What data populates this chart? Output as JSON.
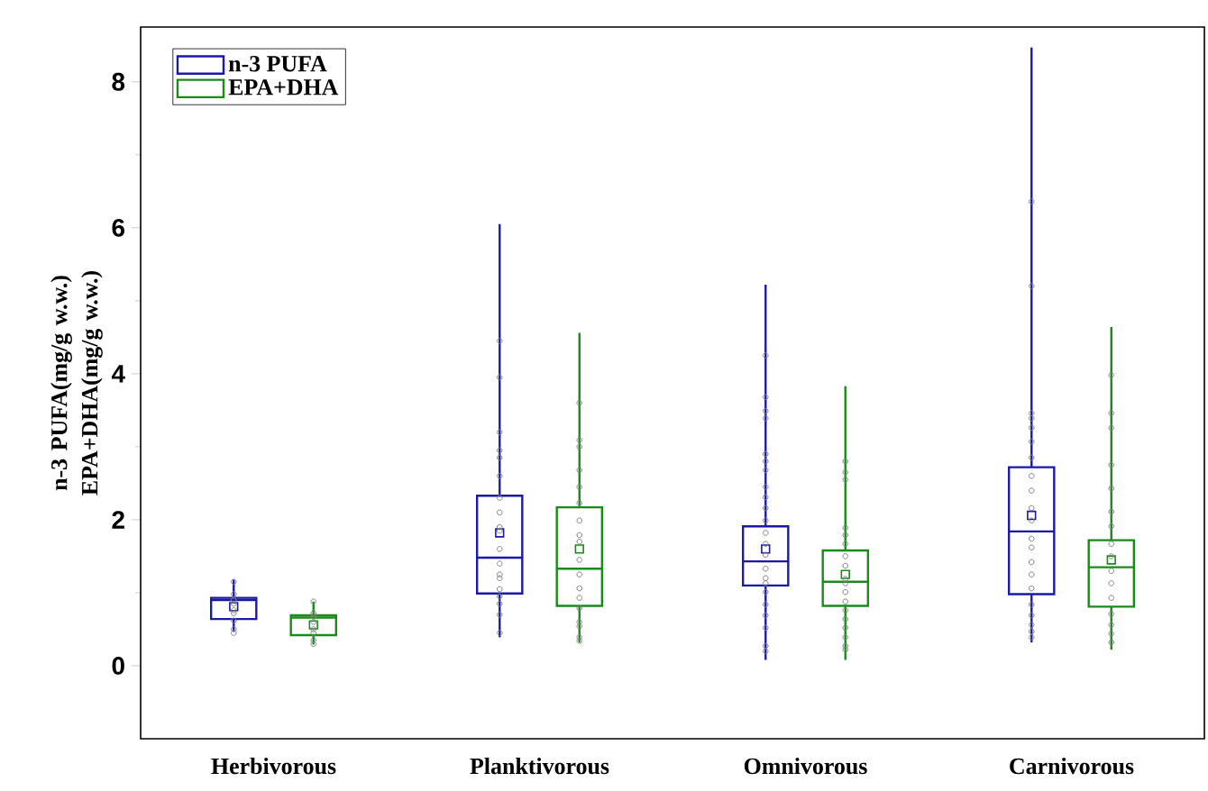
{
  "chart_data": {
    "type": "box",
    "ylabel": "n-3 PUFA(mg/g w.w.) EPA+DHA(mg/g w.w.)",
    "categories": [
      "Herbivorous",
      "Planktivorous",
      "Omnivorous",
      "Carnivorous"
    ],
    "ylim": [
      -1,
      8.75
    ],
    "yticks": [
      0,
      2,
      4,
      6,
      8
    ],
    "legend": "top left",
    "grid": false,
    "series": [
      {
        "name": "n-3 PUFA",
        "color": "#1a1aa6",
        "boxes": [
          {
            "low": 0.47,
            "q1": 0.64,
            "median": 0.9,
            "q3": 0.93,
            "high": 1.18,
            "mean": 0.81
          },
          {
            "low": 0.39,
            "q1": 0.99,
            "median": 1.48,
            "q3": 2.33,
            "high": 6.05,
            "mean": 1.82
          },
          {
            "low": 0.08,
            "q1": 1.1,
            "median": 1.43,
            "q3": 1.91,
            "high": 5.22,
            "mean": 1.6
          },
          {
            "low": 0.32,
            "q1": 0.98,
            "median": 1.84,
            "q3": 2.72,
            "high": 8.47,
            "mean": 2.06
          }
        ]
      },
      {
        "name": "EPA+DHA",
        "color": "#1a8a1a",
        "boxes": [
          {
            "low": 0.29,
            "q1": 0.42,
            "median": 0.66,
            "q3": 0.69,
            "high": 0.88,
            "mean": 0.56
          },
          {
            "low": 0.32,
            "q1": 0.82,
            "median": 1.33,
            "q3": 2.17,
            "high": 4.56,
            "mean": 1.6
          },
          {
            "low": 0.08,
            "q1": 0.82,
            "median": 1.15,
            "q3": 1.58,
            "high": 3.83,
            "mean": 1.25
          },
          {
            "low": 0.22,
            "q1": 0.81,
            "median": 1.35,
            "q3": 1.72,
            "high": 4.64,
            "mean": 1.45
          }
        ]
      },
      {
        "type": "scatter",
        "color": "#808080",
        "marker": "circle",
        "x": [
          "Herbivorous",
          "Herbivorous",
          "Herbivorous",
          "Herbivorous",
          "Herbivorous",
          "Herbivorous",
          "Herbivorous",
          "Herbivorous",
          "Herbivorous",
          "Planktivorous",
          "Planktivorous",
          "Planktivorous",
          "Planktivorous",
          "Planktivorous",
          "Planktivorous",
          "Planktivorous",
          "Planktivorous",
          "Planktivorous",
          "Planktivorous",
          "Planktivorous",
          "Planktivorous",
          "Planktivorous",
          "Planktivorous",
          "Planktivorous",
          "Planktivorous",
          "Planktivorous",
          "Planktivorous",
          "Planktivorous",
          "Omnivorous",
          "Omnivorous",
          "Omnivorous",
          "Omnivorous",
          "Omnivorous",
          "Omnivorous",
          "Omnivorous",
          "Omnivorous",
          "Omnivorous",
          "Omnivorous",
          "Omnivorous",
          "Omnivorous",
          "Omnivorous",
          "Omnivorous",
          "Omnivorous",
          "Omnivorous",
          "Omnivorous",
          "Omnivorous",
          "Omnivorous",
          "Omnivorous",
          "Omnivorous",
          "Omnivorous",
          "Omnivorous",
          "Carnivorous",
          "Carnivorous",
          "Carnivorous",
          "Carnivorous",
          "Carnivorous",
          "Carnivorous",
          "Carnivorous",
          "Carnivorous",
          "Carnivorous",
          "Carnivorous",
          "Carnivorous",
          "Carnivorous",
          "Carnivorous",
          "Carnivorous",
          "Carnivorous",
          "Carnivorous",
          "Carnivorous",
          "Carnivorous",
          "Carnivorous",
          "Carnivorous",
          "Carnivorous"
        ],
        "values": [
          1.15,
          0.98,
          0.9,
          0.85,
          0.76,
          0.72,
          0.62,
          0.5,
          0.45,
          4.45,
          3.95,
          3.2,
          2.95,
          2.85,
          2.6,
          2.3,
          2.1,
          1.9,
          1.85,
          1.6,
          1.4,
          1.25,
          1.2,
          1.05,
          0.95,
          0.85,
          0.7,
          0.45,
          4.25,
          3.68,
          3.49,
          3.39,
          2.9,
          2.8,
          2.68,
          2.45,
          2.31,
          2.16,
          1.99,
          1.82,
          1.67,
          1.52,
          1.33,
          1.2,
          1.13,
          1.01,
          0.84,
          0.69,
          0.52,
          0.27,
          0.2,
          6.36,
          5.2,
          3.46,
          3.39,
          3.26,
          3.07,
          2.85,
          2.6,
          2.4,
          2.16,
          1.99,
          1.74,
          1.62,
          1.42,
          1.25,
          1.06,
          0.84,
          0.69,
          0.56,
          0.47,
          0.39
        ]
      },
      {
        "type": "scatter",
        "color": "#808080",
        "marker": "circle",
        "x": [
          "Herbivorous",
          "Herbivorous",
          "Herbivorous",
          "Herbivorous",
          "Herbivorous",
          "Herbivorous",
          "Herbivorous",
          "Herbivorous",
          "Planktivorous",
          "Planktivorous",
          "Planktivorous",
          "Planktivorous",
          "Planktivorous",
          "Planktivorous",
          "Planktivorous",
          "Planktivorous",
          "Planktivorous",
          "Planktivorous",
          "Planktivorous",
          "Planktivorous",
          "Planktivorous",
          "Planktivorous",
          "Planktivorous",
          "Planktivorous",
          "Planktivorous",
          "Planktivorous",
          "Omnivorous",
          "Omnivorous",
          "Omnivorous",
          "Omnivorous",
          "Omnivorous",
          "Omnivorous",
          "Omnivorous",
          "Omnivorous",
          "Omnivorous",
          "Omnivorous",
          "Omnivorous",
          "Omnivorous",
          "Omnivorous",
          "Omnivorous",
          "Omnivorous",
          "Omnivorous",
          "Omnivorous",
          "Omnivorous",
          "Carnivorous",
          "Carnivorous",
          "Carnivorous",
          "Carnivorous",
          "Carnivorous",
          "Carnivorous",
          "Carnivorous",
          "Carnivorous",
          "Carnivorous",
          "Carnivorous",
          "Carnivorous",
          "Carnivorous",
          "Carnivorous",
          "Carnivorous",
          "Carnivorous",
          "Carnivorous"
        ],
        "values": [
          0.88,
          0.72,
          0.68,
          0.6,
          0.5,
          0.45,
          0.35,
          0.3,
          3.6,
          3.09,
          3.0,
          2.68,
          2.45,
          2.23,
          1.99,
          1.79,
          1.7,
          1.45,
          1.25,
          1.06,
          0.93,
          0.79,
          0.6,
          0.54,
          0.39,
          0.34,
          2.8,
          2.65,
          2.55,
          1.89,
          1.79,
          1.67,
          1.5,
          1.37,
          1.19,
          1.13,
          1.01,
          0.88,
          0.76,
          0.64,
          0.52,
          0.39,
          0.27,
          0.22,
          3.98,
          3.46,
          3.26,
          2.75,
          2.43,
          2.11,
          1.91,
          1.67,
          1.5,
          1.3,
          1.13,
          0.93,
          0.71,
          0.56,
          0.44,
          0.32
        ]
      }
    ]
  }
}
